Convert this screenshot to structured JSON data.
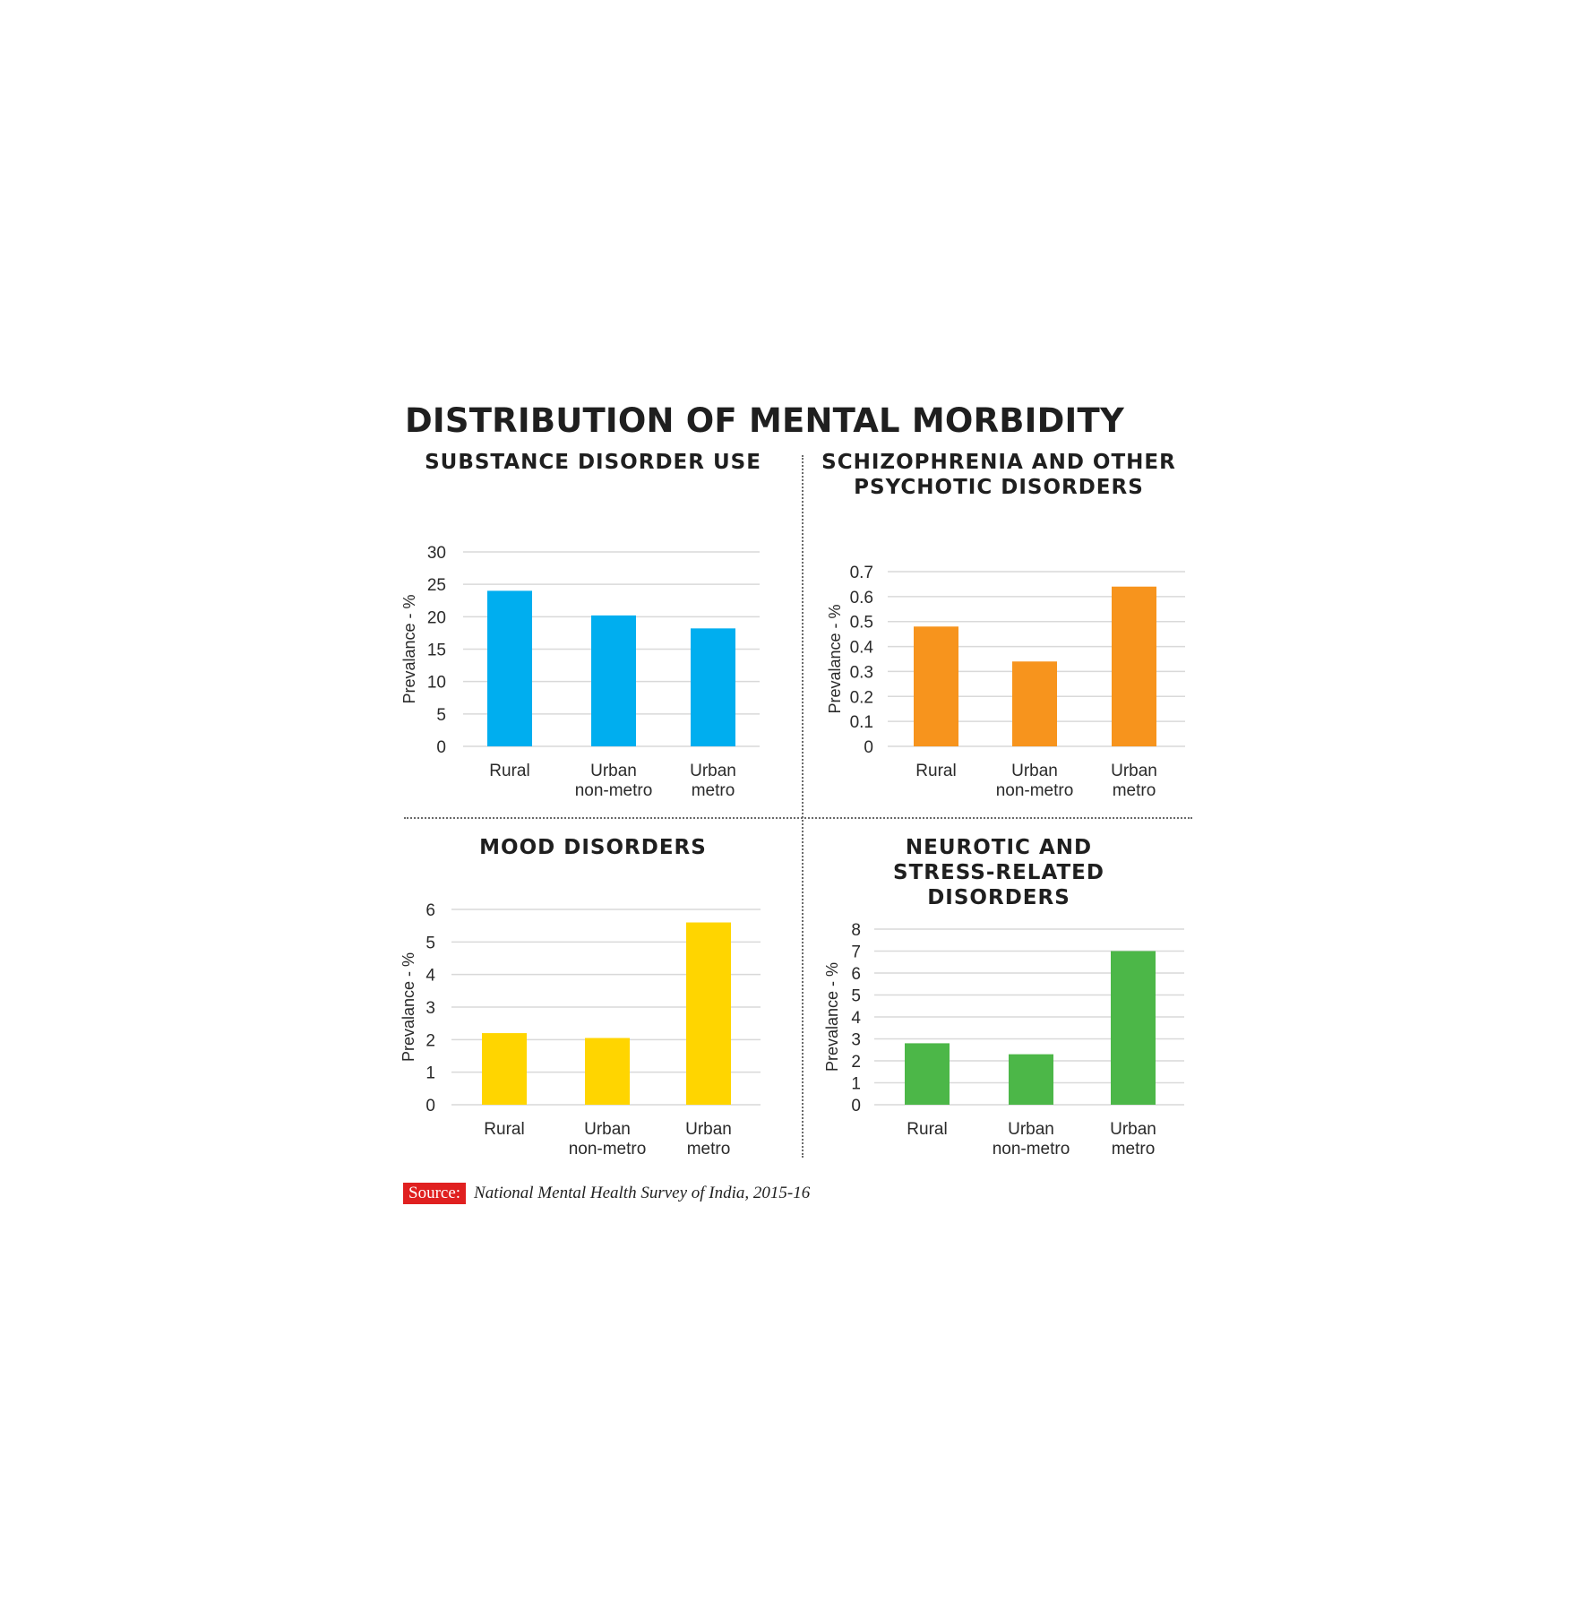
{
  "title": "DISTRIBUTION OF MENTAL MORBIDITY",
  "source": {
    "label": "Source:",
    "text": "National Mental Health Survey of India, 2015-16"
  },
  "chart_data": [
    {
      "type": "bar",
      "title": "SUBSTANCE DISORDER USE",
      "ylabel": "Prevalance - %",
      "categories": [
        "Rural",
        "Urban non-metro",
        "Urban metro"
      ],
      "category_lines": [
        [
          "Rural"
        ],
        [
          "Urban",
          "non-metro"
        ],
        [
          "Urban",
          "metro"
        ]
      ],
      "values": [
        24,
        20.2,
        18.2
      ],
      "ylim": [
        0,
        30
      ],
      "yticks": [
        "0",
        "5",
        "10",
        "15",
        "20",
        "25",
        "30"
      ],
      "color": "#00aeef",
      "grid": true
    },
    {
      "type": "bar",
      "title": "SCHIZOPHRENIA AND OTHER PSYCHOTIC DISORDERS",
      "ylabel": "Prevalance - %",
      "categories": [
        "Rural",
        "Urban non-metro",
        "Urban metro"
      ],
      "category_lines": [
        [
          "Rural"
        ],
        [
          "Urban",
          "non-metro"
        ],
        [
          "Urban",
          "metro"
        ]
      ],
      "values": [
        0.48,
        0.34,
        0.64
      ],
      "ylim": [
        0,
        0.7
      ],
      "yticks": [
        "0",
        "0.1",
        "0.2",
        "0.3",
        "0.4",
        "0.5",
        "0.6",
        "0.7"
      ],
      "color": "#f7941d",
      "grid": true
    },
    {
      "type": "bar",
      "title": "MOOD DISORDERS",
      "ylabel": "Prevalance - %",
      "categories": [
        "Rural",
        "Urban non-metro",
        "Urban metro"
      ],
      "category_lines": [
        [
          "Rural"
        ],
        [
          "Urban",
          "non-metro"
        ],
        [
          "Urban",
          "metro"
        ]
      ],
      "values": [
        2.2,
        2.05,
        5.6
      ],
      "ylim": [
        0,
        6
      ],
      "yticks": [
        "0",
        "1",
        "2",
        "3",
        "4",
        "5",
        "6"
      ],
      "color": "#ffd500",
      "grid": true
    },
    {
      "type": "bar",
      "title": "NEUROTIC AND STRESS-RELATED DISORDERS",
      "ylabel": "Prevalance - %",
      "categories": [
        "Rural",
        "Urban non-metro",
        "Urban metro"
      ],
      "category_lines": [
        [
          "Rural"
        ],
        [
          "Urban",
          "non-metro"
        ],
        [
          "Urban",
          "metro"
        ]
      ],
      "values": [
        2.8,
        2.3,
        7
      ],
      "ylim": [
        0,
        8
      ],
      "yticks": [
        "0",
        "1",
        "2",
        "3",
        "4",
        "5",
        "6",
        "7",
        "8"
      ],
      "color": "#4cb748",
      "grid": true
    }
  ]
}
